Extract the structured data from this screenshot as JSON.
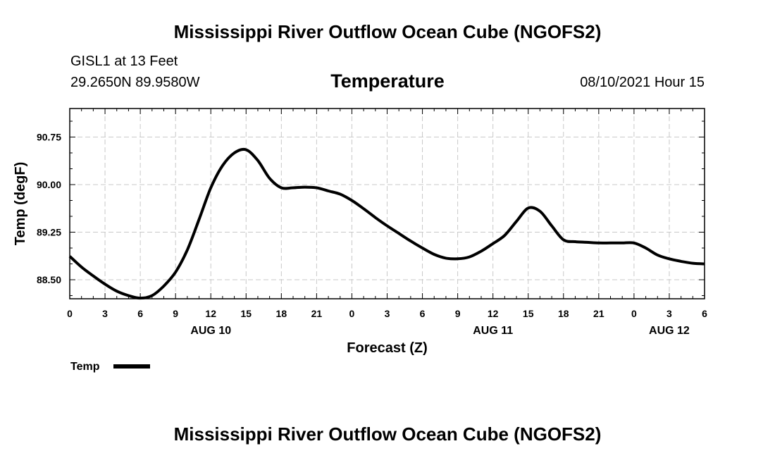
{
  "header": {
    "title": "Mississippi River Outflow Ocean Cube (NGOFS2)",
    "station": "GISL1 at 13 Feet",
    "coords": "29.2650N  89.9580W",
    "variable": "Temperature",
    "datetime": "08/10/2021 Hour 15"
  },
  "footer": {
    "title": "Mississippi River Outflow Ocean Cube (NGOFS2)"
  },
  "legend": {
    "label": "Temp"
  },
  "chart_data": {
    "type": "line",
    "title": "Temperature",
    "xlabel": "Forecast (Z)",
    "ylabel": "Temp (degF)",
    "xlim": [
      0,
      54
    ],
    "ylim": [
      88.2,
      91.2
    ],
    "grid": true,
    "legend_position": "bottom-left",
    "x_tick_hours": [
      0,
      3,
      6,
      9,
      12,
      15,
      18,
      21,
      24,
      27,
      30,
      33,
      36,
      39,
      42,
      45,
      48,
      51,
      54
    ],
    "x_tick_labels": [
      "0",
      "3",
      "6",
      "9",
      "12",
      "15",
      "18",
      "21",
      "0",
      "3",
      "6",
      "9",
      "12",
      "15",
      "18",
      "21",
      "0",
      "3",
      "6"
    ],
    "date_labels": [
      {
        "hour": 12,
        "label": "AUG 10"
      },
      {
        "hour": 36,
        "label": "AUG 11"
      },
      {
        "hour": 51,
        "label": "AUG 12"
      }
    ],
    "y_ticks": [
      88.5,
      89.25,
      90.0,
      90.75
    ],
    "y_tick_labels": [
      "88.50",
      "89.25",
      "90.00",
      "90.75"
    ],
    "series": [
      {
        "name": "Temp",
        "color": "#000000",
        "x": [
          0,
          1,
          2,
          3,
          4,
          5,
          6,
          7,
          8,
          9,
          10,
          11,
          12,
          13,
          14,
          15,
          16,
          17,
          18,
          19,
          20,
          21,
          22,
          23,
          24,
          25,
          26,
          27,
          28,
          29,
          30,
          31,
          32,
          33,
          34,
          35,
          36,
          37,
          38,
          39,
          40,
          41,
          42,
          43,
          44,
          45,
          46,
          47,
          48,
          49,
          50,
          51,
          52,
          53,
          54
        ],
        "y": [
          88.87,
          88.7,
          88.56,
          88.43,
          88.32,
          88.25,
          88.21,
          88.25,
          88.4,
          88.62,
          88.97,
          89.45,
          89.95,
          90.3,
          90.5,
          90.55,
          90.38,
          90.1,
          89.95,
          89.95,
          89.96,
          89.95,
          89.9,
          89.85,
          89.75,
          89.62,
          89.48,
          89.35,
          89.23,
          89.11,
          89.0,
          88.9,
          88.84,
          88.83,
          88.86,
          88.95,
          89.07,
          89.2,
          89.42,
          89.63,
          89.58,
          89.35,
          89.13,
          89.1,
          89.09,
          89.08,
          89.08,
          89.08,
          89.08,
          89.0,
          88.89,
          88.83,
          88.79,
          88.76,
          88.75
        ]
      }
    ]
  }
}
